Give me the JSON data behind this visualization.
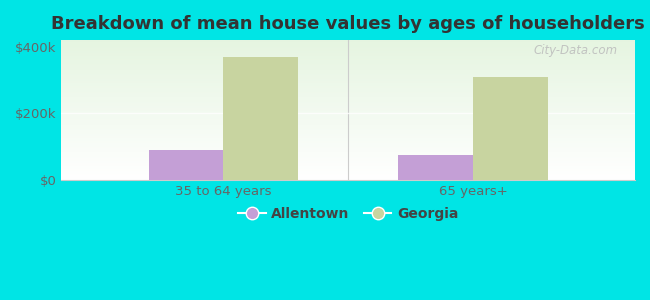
{
  "title": "Breakdown of mean house values by ages of householders",
  "categories": [
    "35 to 64 years",
    "65 years+"
  ],
  "series": {
    "Allentown": [
      90000,
      75000
    ],
    "Georgia": [
      370000,
      310000
    ]
  },
  "allentown_color": "#c49fd6",
  "georgia_color": "#c8d4a0",
  "background_color": "#00e5e5",
  "ylim": [
    0,
    420000
  ],
  "yticks": [
    0,
    200000,
    400000
  ],
  "ytick_labels": [
    "$0",
    "$200k",
    "$400k"
  ],
  "bar_width": 0.3,
  "watermark": "City-Data.com",
  "title_fontsize": 13,
  "tick_fontsize": 9.5,
  "legend_fontsize": 10
}
